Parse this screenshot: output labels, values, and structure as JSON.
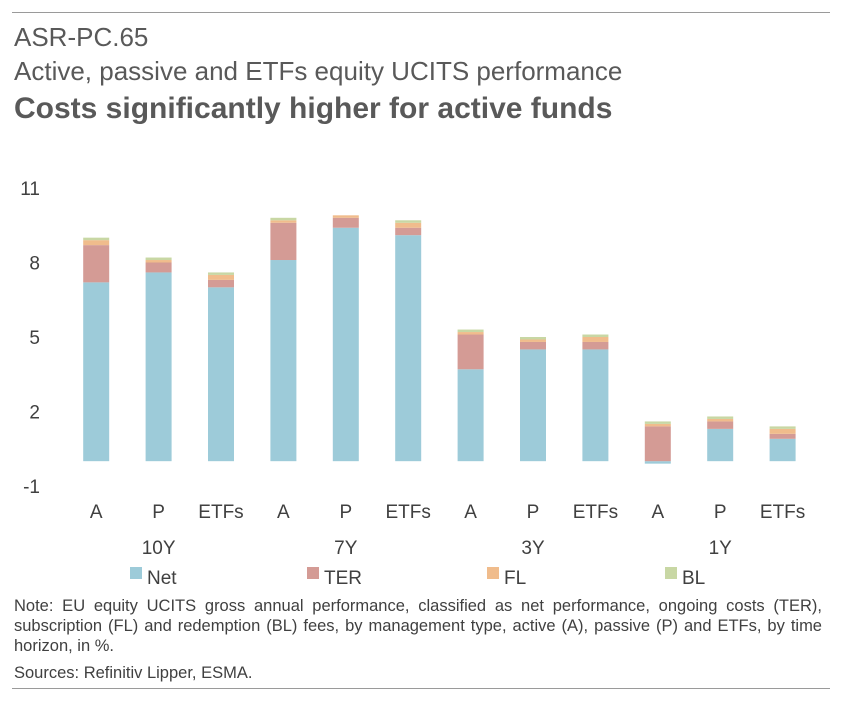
{
  "header": {
    "code": "ASR-PC.65",
    "subtitle": "Active, passive and ETFs equity UCITS performance",
    "headline": "Costs significantly higher for active funds"
  },
  "colors": {
    "Net": "#9dcbd9",
    "TER": "#d49b95",
    "FL": "#f0bc8c",
    "BL": "#c8d7a4"
  },
  "chart_data": {
    "type": "bar",
    "stacked": true,
    "categories": [
      "A",
      "P",
      "ETFs",
      "A",
      "P",
      "ETFs",
      "A",
      "P",
      "ETFs",
      "A",
      "P",
      "ETFs"
    ],
    "groups": [
      {
        "label": "10Y",
        "span": 3
      },
      {
        "label": "7Y",
        "span": 3
      },
      {
        "label": "3Y",
        "span": 3
      },
      {
        "label": "1Y",
        "span": 3
      }
    ],
    "series": [
      {
        "name": "Net",
        "values": [
          7.2,
          7.6,
          7.0,
          8.1,
          9.4,
          9.1,
          3.7,
          4.5,
          4.5,
          -0.1,
          1.3,
          0.9
        ]
      },
      {
        "name": "TER",
        "values": [
          1.5,
          0.4,
          0.3,
          1.5,
          0.4,
          0.3,
          1.4,
          0.3,
          0.3,
          1.4,
          0.3,
          0.2
        ]
      },
      {
        "name": "FL",
        "values": [
          0.2,
          0.1,
          0.2,
          0.1,
          0.1,
          0.2,
          0.1,
          0.1,
          0.2,
          0.1,
          0.1,
          0.2
        ]
      },
      {
        "name": "BL",
        "values": [
          0.1,
          0.1,
          0.1,
          0.1,
          0.0,
          0.1,
          0.1,
          0.1,
          0.1,
          0.1,
          0.1,
          0.1
        ]
      }
    ],
    "ylim": [
      -1,
      11
    ],
    "yticks": [
      -1,
      2,
      5,
      8,
      11
    ],
    "grid": false,
    "legend": "bottom"
  },
  "note": "Note: EU equity UCITS gross annual performance, classified as net performance, ongoing costs (TER), subscription (FL) and redemption (BL) fees, by management type, active (A), passive (P) and ETFs, by time horizon, in %.",
  "sources": "Sources: Refinitiv Lipper, ESMA."
}
